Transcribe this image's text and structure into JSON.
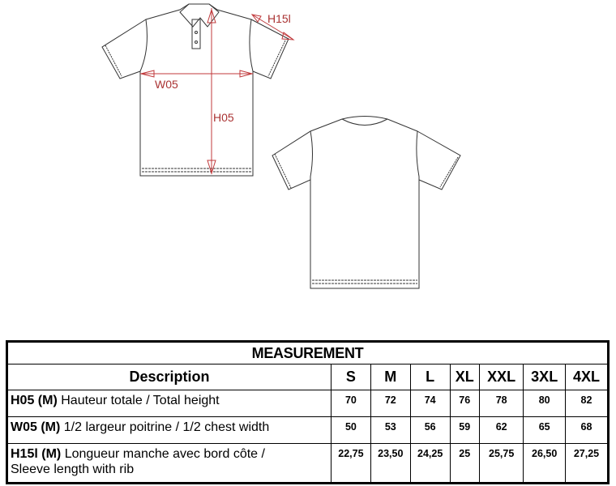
{
  "diagram": {
    "labels": {
      "height": "H05",
      "width": "W05",
      "sleeve": "H15l"
    },
    "colors": {
      "measure": "#c0393b",
      "outline": "#333333"
    }
  },
  "table": {
    "title": "MEASUREMENT",
    "description_header": "Description",
    "sizes": [
      "S",
      "M",
      "L",
      "XL",
      "XXL",
      "3XL",
      "4XL"
    ],
    "rows": [
      {
        "code": "H05 (M)",
        "label": "Hauteur totale / Total height",
        "values": [
          "70",
          "72",
          "74",
          "76",
          "78",
          "80",
          "82"
        ]
      },
      {
        "code": "W05 (M)",
        "label": "1/2 largeur poitrine / 1/2 chest width",
        "values": [
          "50",
          "53",
          "56",
          "59",
          "62",
          "65",
          "68"
        ]
      },
      {
        "code": "H15l (M)",
        "label": "Longueur manche avec bord côte /",
        "label2": "Sleeve length with rib",
        "values": [
          "22,75",
          "23,50",
          "24,25",
          "25",
          "25,75",
          "26,50",
          "27,25"
        ]
      }
    ]
  }
}
